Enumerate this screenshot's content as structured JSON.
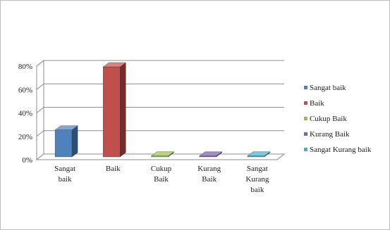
{
  "chart_data": {
    "type": "bar",
    "categories": [
      [
        "Sangat",
        "baik"
      ],
      [
        "Baik"
      ],
      [
        "Cukup",
        "Baik"
      ],
      [
        "Kurang",
        "Baik"
      ],
      [
        "Sangat",
        "Kurang",
        "baik"
      ]
    ],
    "values": [
      23,
      77,
      0,
      0,
      0
    ],
    "y_ticks": [
      "0%",
      "20%",
      "40%",
      "60%",
      "80%"
    ],
    "ylim": [
      0,
      80
    ],
    "title": "",
    "xlabel": "",
    "ylabel": "",
    "grid": true,
    "legend_position": "right",
    "legend": [
      "Sangat baik",
      "Baik",
      "Cukup Baik",
      "Kurang Baik",
      "Sangat Kurang baik"
    ],
    "colors": {
      "front": [
        "#4f81bd",
        "#c0504d",
        "#9bbb59",
        "#8064a2",
        "#4bacc6"
      ],
      "side": [
        "#2c4d75",
        "#772c2a",
        "#5f7530",
        "#4d3b62",
        "#276a7c"
      ],
      "top": [
        "#7ea6d8",
        "#d98380",
        "#b9d18a",
        "#a28ec0",
        "#82c8da"
      ]
    }
  }
}
